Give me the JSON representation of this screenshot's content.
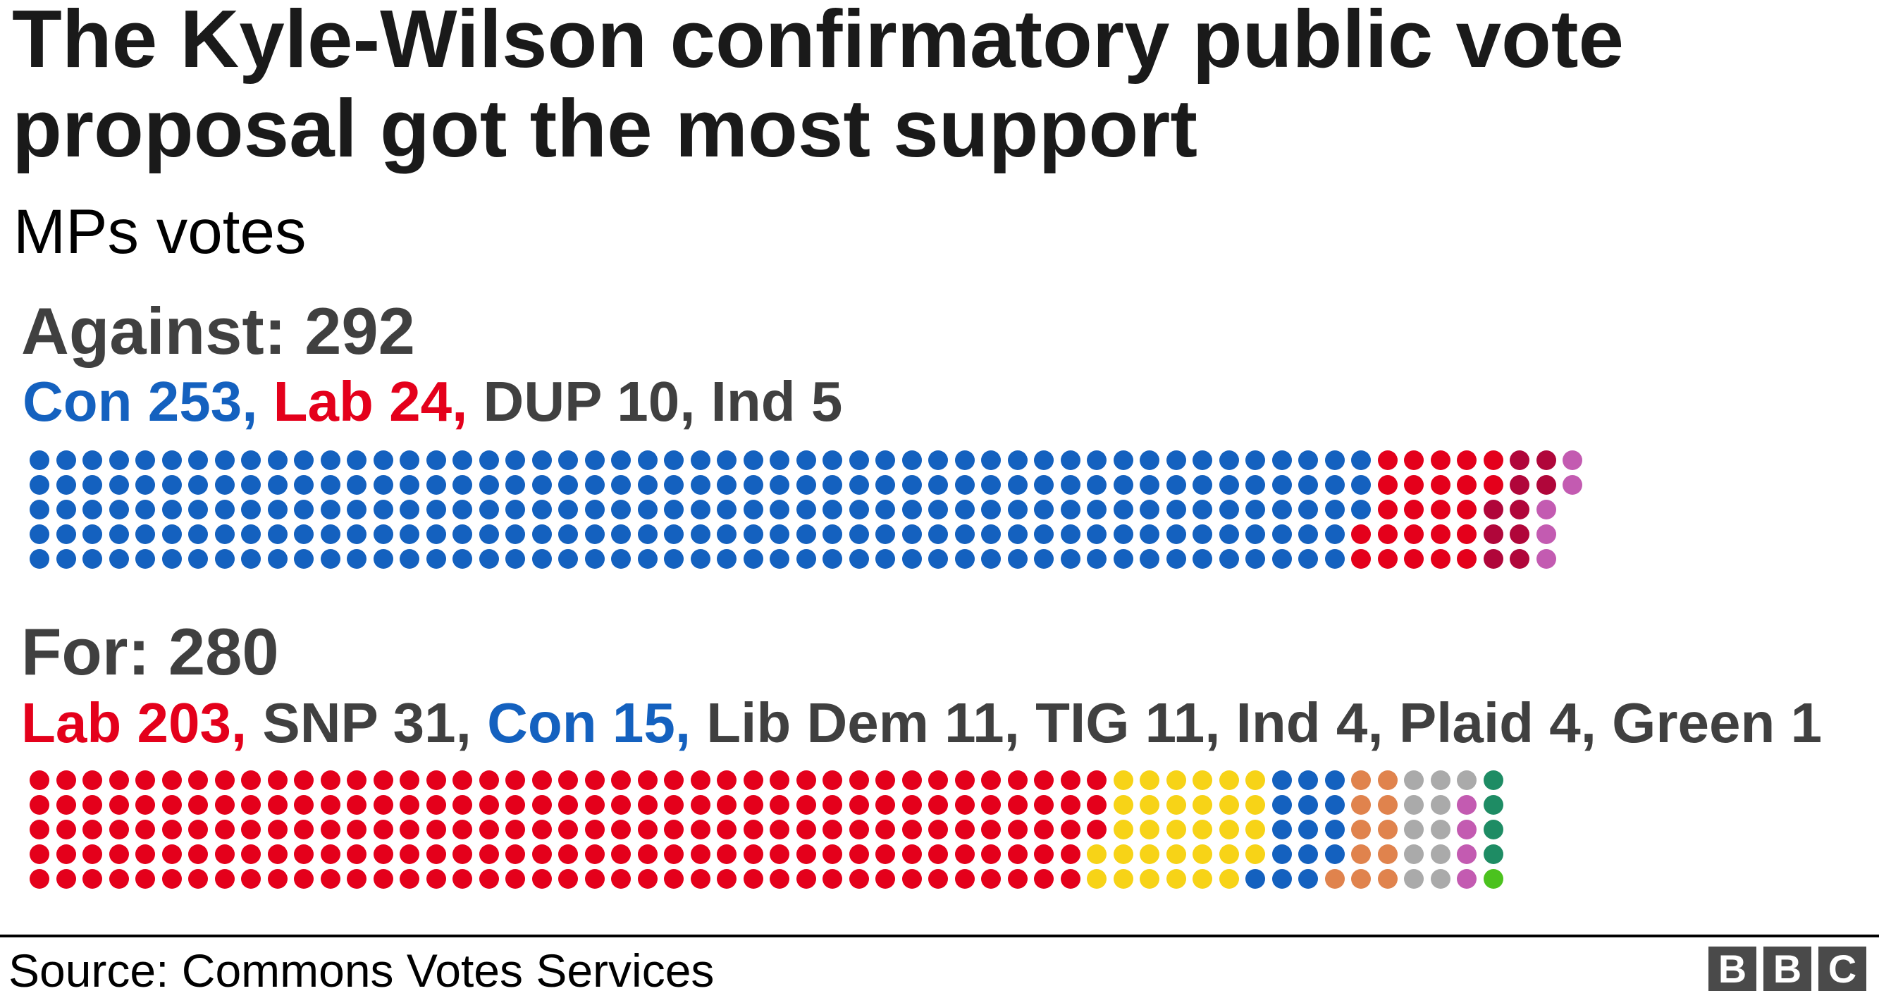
{
  "header": {
    "title_line1": "The Kyle-Wilson confirmatory public vote",
    "title_line2": "proposal got the most support",
    "subtitle": "MPs votes"
  },
  "groups": [
    {
      "heading": "Against: 292",
      "parties_text": [
        {
          "text": "Con 253,",
          "color": "#1461bf"
        },
        {
          "text": " Lab 24,",
          "color": "#e4001b"
        },
        {
          "text": " DUP 10, Ind 5",
          "color": "#404040"
        }
      ]
    },
    {
      "heading": "For: 280",
      "parties_text": [
        {
          "text": "Lab 203,",
          "color": "#e4001b"
        },
        {
          "text": " SNP 31,",
          "color": "#404040"
        },
        {
          "text": " Con 15,",
          "color": "#1461bf"
        },
        {
          "text": " Lib Dem 11, TIG 11, Ind 4, Plaid 4, Green 1",
          "color": "#404040"
        }
      ]
    }
  ],
  "footer": {
    "source": "Source: Commons Votes Services",
    "logo_letters": [
      "B",
      "B",
      "C"
    ]
  },
  "chart_data": {
    "type": "waffle",
    "title": "The Kyle-Wilson confirmatory public vote proposal got the most support",
    "subtitle": "MPs votes",
    "rows_per_column": 5,
    "categories": [
      "Against",
      "For"
    ],
    "series": [
      {
        "name": "Against",
        "total": 292,
        "parties": [
          {
            "name": "Con",
            "value": 253,
            "color": "#1461bf"
          },
          {
            "name": "Lab",
            "value": 24,
            "color": "#e4001b"
          },
          {
            "name": "DUP",
            "value": 10,
            "color": "#b0063a"
          },
          {
            "name": "Ind",
            "value": 5,
            "color": "#c35bb1"
          }
        ]
      },
      {
        "name": "For",
        "total": 280,
        "parties": [
          {
            "name": "Lab",
            "value": 203,
            "color": "#e4001b"
          },
          {
            "name": "SNP",
            "value": 31,
            "color": "#f7d317"
          },
          {
            "name": "Con",
            "value": 15,
            "color": "#1461bf"
          },
          {
            "name": "Lib Dem",
            "value": 11,
            "color": "#e0834d"
          },
          {
            "name": "TIG",
            "value": 11,
            "color": "#aaaaaa"
          },
          {
            "name": "Ind",
            "value": 4,
            "color": "#c35bb1"
          },
          {
            "name": "Plaid",
            "value": 4,
            "color": "#1e8c64"
          },
          {
            "name": "Green",
            "value": 1,
            "color": "#4bc21e"
          }
        ]
      }
    ],
    "source": "Source: Commons Votes Services"
  }
}
